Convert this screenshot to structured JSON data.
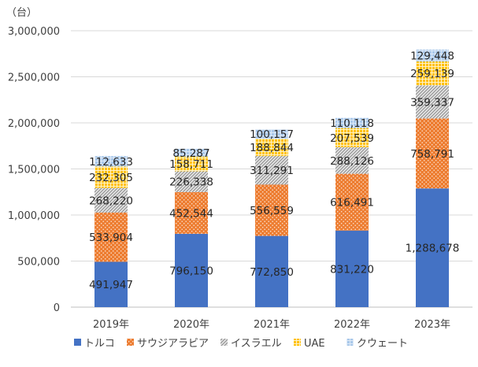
{
  "chart_data": {
    "type": "bar",
    "stacked": true,
    "unit_label": "（台）",
    "categories": [
      "2019年",
      "2020年",
      "2021年",
      "2022年",
      "2023年"
    ],
    "series": [
      {
        "name": "トルコ",
        "color": "#4472C4",
        "pattern": "solid",
        "values": [
          491947,
          796150,
          772850,
          831220,
          1288678
        ],
        "labels": [
          "491,947",
          "796,150",
          "772,850",
          "831,220",
          "1,288,678"
        ]
      },
      {
        "name": "サウジアラビア",
        "color": "#ED7D31",
        "pattern": "dots",
        "values": [
          533904,
          452544,
          556559,
          616491,
          758791
        ],
        "labels": [
          "533,904",
          "452,544",
          "556,559",
          "616,491",
          "758,791"
        ]
      },
      {
        "name": "イスラエル",
        "color": "#A5A5A5",
        "pattern": "diagonal",
        "values": [
          268220,
          226338,
          311291,
          288126,
          359337
        ],
        "labels": [
          "268,220",
          "226,338",
          "311,291",
          "288,126",
          "359,337"
        ]
      },
      {
        "name": "UAE",
        "color": "#FFC000",
        "pattern": "grid",
        "values": [
          232305,
          158711,
          188844,
          207539,
          259139
        ],
        "labels": [
          "232,305",
          "158,711",
          "188,844",
          "207,539",
          "259,139"
        ]
      },
      {
        "name": "クウェート",
        "color": "#5B9BD5",
        "pattern": "lightgrid",
        "values": [
          112633,
          85287,
          100157,
          110118,
          129448
        ],
        "labels": [
          "112,633",
          "85,287",
          "100,157",
          "110,118",
          "129,448"
        ]
      }
    ],
    "ylim": [
      0,
      3000000
    ],
    "yticks": [
      0,
      500000,
      1000000,
      1500000,
      2000000,
      2500000,
      3000000
    ],
    "ytick_labels": [
      "0",
      "500,000",
      "1,000,000",
      "1,500,000",
      "2,000,000",
      "2,500,000",
      "3,000,000"
    ],
    "grid": true,
    "legend_position": "bottom"
  }
}
